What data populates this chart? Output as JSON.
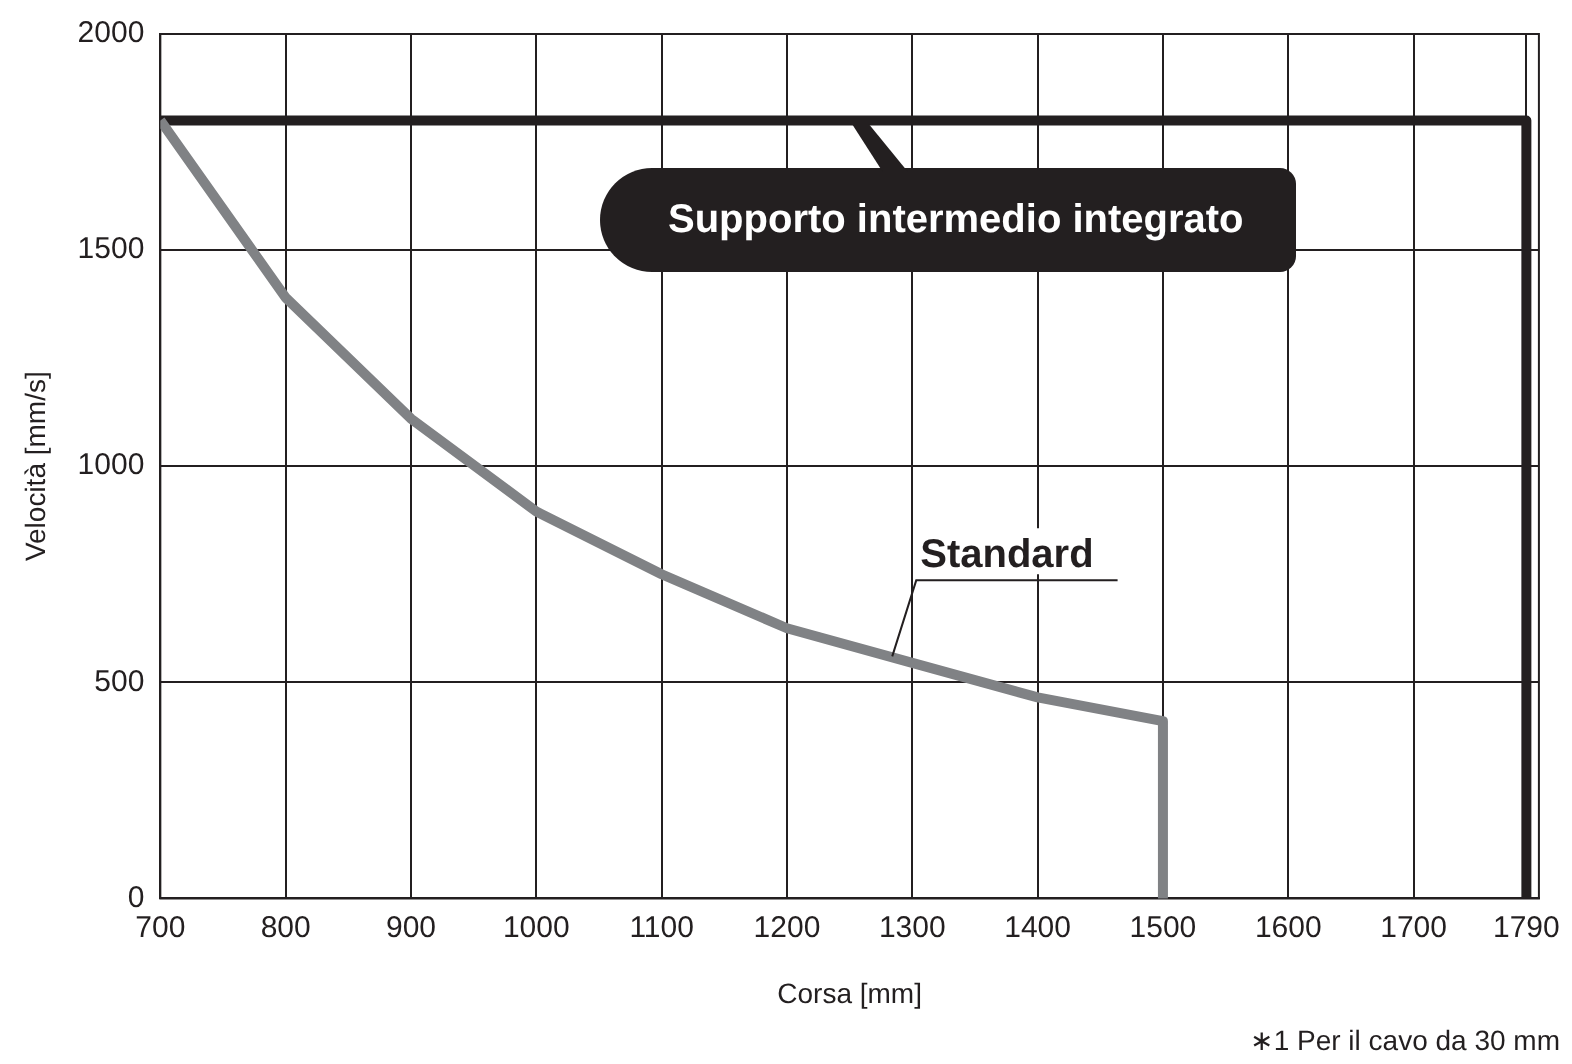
{
  "chart_data": {
    "type": "line",
    "xlabel": "Corsa [mm]",
    "ylabel": "Velocità [mm/s]",
    "series": [
      {
        "color": "#808285",
        "x": [
          700,
          800,
          900,
          1000,
          1100,
          1200,
          1300,
          1400,
          1500,
          1500
        ],
        "values": [
          1800,
          1390,
          1110,
          895,
          750,
          625,
          545,
          465,
          410,
          0
        ]
      },
      {
        "color": "#231f20",
        "x": [
          700,
          1790,
          1790
        ],
        "values": [
          1800,
          1800,
          0
        ]
      }
    ],
    "xlim": [
      700,
      1800
    ],
    "xticks": [
      700,
      800,
      900,
      1000,
      1100,
      1200,
      1300,
      1400,
      1500,
      1600,
      1700,
      1790
    ],
    "ylim": [
      0,
      2000
    ],
    "yticks": [
      0,
      500,
      1000,
      1500,
      2000
    ],
    "grid": true,
    "legend": false,
    "marker": "none",
    "line_style": "solid",
    "annotations": [
      "Supporto intermedio integrato",
      {
        "text": "Standard",
        "x": 1284,
        "y": 560
      },
      "∗1  Per il cavo da 30 mm"
    ]
  }
}
